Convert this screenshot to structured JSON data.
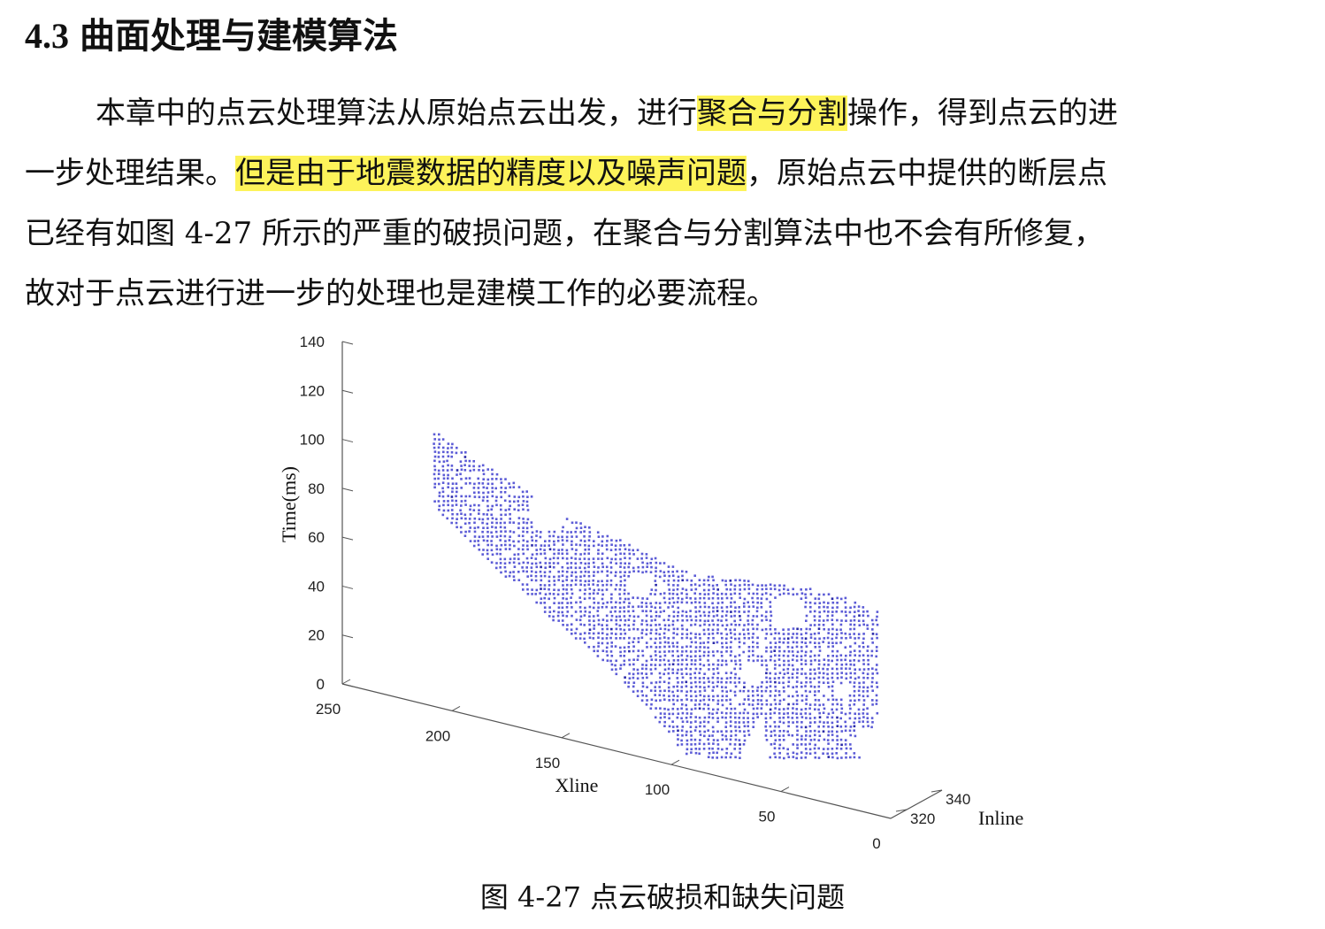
{
  "heading": {
    "number": "4.3",
    "title": "曲面处理与建模算法"
  },
  "paragraph": {
    "line1": {
      "a": "本章中的点云处理算法从原始点云出发，进行",
      "highlight": "聚合与分割",
      "b": "操作，得到点云的进"
    },
    "line2": {
      "a": "一步处理结果。",
      "highlight": "但是由于地震数据的精度以及噪声问题",
      "b": "，原始点云中提供的断层点"
    },
    "line3": "已经有如图 4-27 所示的严重的破损问题，在聚合与分割算法中也不会有所修复，",
    "line4": "故对于点云进行进一步的处理也是建模工作的必要流程。"
  },
  "figure": {
    "caption": "图 4-27  点云破损和缺失问题",
    "colors": {
      "points": "#5b5bd6",
      "points_dark": "#2a2aa8",
      "axis": "#555555"
    },
    "chart_data": {
      "type": "scatter3d",
      "title": "",
      "xlabel": "Xline",
      "ylabel": "Inline",
      "zlabel": "Time(ms)",
      "xlim": [
        0,
        250
      ],
      "ylim": [
        320,
        340
      ],
      "zlim": [
        0,
        140
      ],
      "x_ticks": [
        "250",
        "200",
        "150",
        "100",
        "50",
        "0"
      ],
      "y_ticks": [
        "320",
        "340"
      ],
      "z_ticks": [
        "140",
        "120",
        "100",
        "80",
        "60",
        "40",
        "20",
        "0"
      ],
      "series": [
        {
          "surface_outline_xline_time": [
            [
              250,
              132
            ],
            [
              240,
              124
            ],
            [
              220,
              118
            ],
            [
              200,
              110
            ],
            [
              180,
              102
            ],
            [
              160,
              96
            ],
            [
              140,
              90
            ],
            [
              120,
              86
            ],
            [
              100,
              82
            ],
            [
              88,
              80
            ],
            [
              80,
              82
            ],
            [
              60,
              84
            ],
            [
              40,
              86
            ],
            [
              20,
              86
            ],
            [
              5,
              84
            ],
            [
              5,
              60
            ],
            [
              8,
              30
            ],
            [
              12,
              8
            ],
            [
              30,
              4
            ],
            [
              55,
              8
            ],
            [
              60,
              30
            ],
            [
              70,
              8
            ],
            [
              95,
              6
            ],
            [
              110,
              20
            ],
            [
              130,
              35
            ],
            [
              150,
              45
            ],
            [
              175,
              60
            ],
            [
              200,
              75
            ],
            [
              225,
              95
            ],
            [
              250,
              120
            ]
          ]
        }
      ]
    }
  }
}
